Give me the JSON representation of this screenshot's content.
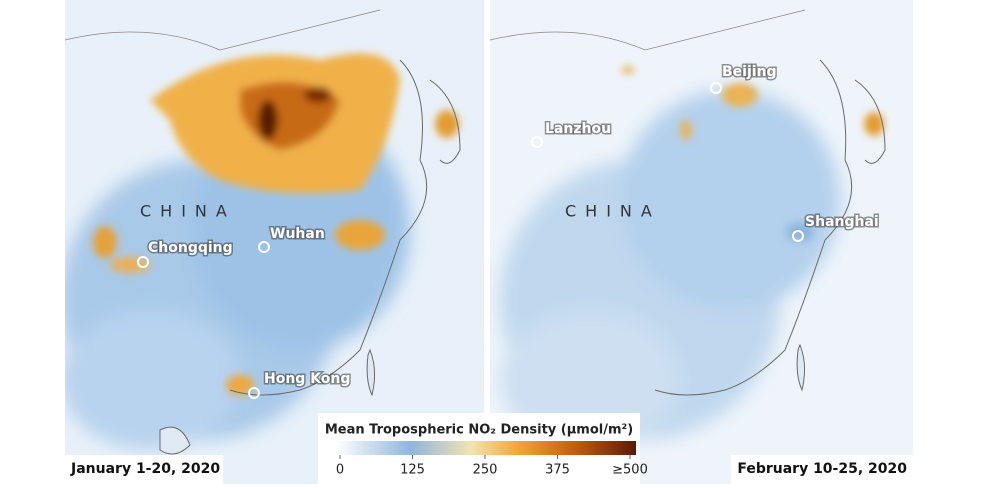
{
  "maps": [
    {
      "date": "January 1-20, 2020",
      "country": "CHINA",
      "cities": [
        "Chongqing",
        "Wuhan",
        "Hong Kong"
      ]
    },
    {
      "date": "February 10-25, 2020",
      "country": "CHINA",
      "cities": [
        "Lanzhou",
        "Beijing",
        "Shanghai"
      ]
    }
  ],
  "legend": {
    "title": "Mean Tropospheric NO₂ Density (μmol/m²)",
    "range": [
      0,
      500
    ],
    "ticks": [
      0,
      125,
      250,
      375,
      {
        "value": 500,
        "label": "≥500"
      }
    ]
  }
}
